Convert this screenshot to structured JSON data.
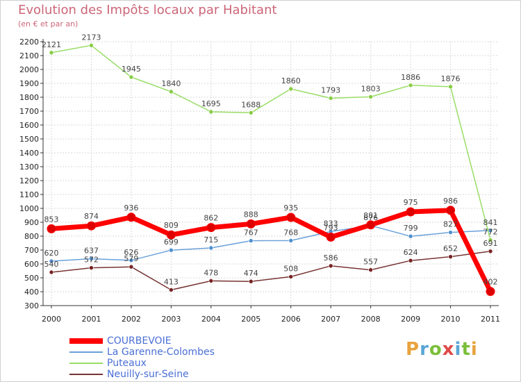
{
  "title": "Evolution des Impôts locaux par Habitant",
  "subtitle": "(en € et par an)",
  "brand": {
    "text": "Proxiti",
    "letter_colors": [
      "#e8a33d",
      "#5aa5d6",
      "#7bbf3a",
      "#e04848",
      "#5aa5d6",
      "#7bbf3a",
      "#e8a33d"
    ]
  },
  "chart_data": {
    "type": "line",
    "title": "Evolution des Impôts locaux par Habitant",
    "subtitle": "(en € et par an)",
    "xlabel": "",
    "ylabel": "",
    "x": [
      "2000",
      "2001",
      "2002",
      "2003",
      "2004",
      "2005",
      "2006",
      "2007",
      "2008",
      "2009",
      "2010",
      "2011"
    ],
    "ylim": [
      300,
      2200
    ],
    "y_ticks": [
      300,
      400,
      500,
      600,
      700,
      800,
      900,
      1000,
      1100,
      1200,
      1300,
      1400,
      1500,
      1600,
      1700,
      1800,
      1900,
      2000,
      2100,
      2200
    ],
    "grid": true,
    "legend_position": "bottom-left",
    "series": [
      {
        "name": "COURBEVOIE",
        "color": "#ff0000",
        "marker_color": "#dd0000",
        "emphasis": true,
        "values": [
          853,
          874,
          936,
          809,
          862,
          888,
          935,
          793,
          881,
          975,
          986,
          402
        ],
        "labels": [
          "853",
          "874",
          "936",
          "809",
          "862",
          "888",
          "935",
          "793",
          "881",
          "975",
          "986",
          "402"
        ]
      },
      {
        "name": "La Garenne-Colombes",
        "color": "#6aa0d8",
        "marker_color": "#4f8fd0",
        "emphasis": false,
        "values": [
          620,
          637,
          626,
          699,
          715,
          767,
          768,
          833,
          876,
          799,
          827,
          841
        ],
        "labels": [
          "620",
          "637",
          "626",
          "699",
          "715",
          "767",
          "768",
          "833",
          "876",
          "799",
          "827",
          "841"
        ]
      },
      {
        "name": "Puteaux",
        "color": "#99dd66",
        "marker_color": "#88cc44",
        "emphasis": false,
        "values": [
          2121,
          2173,
          1945,
          1840,
          1695,
          1688,
          1860,
          1793,
          1803,
          1886,
          1876,
          772
        ],
        "labels": [
          "2121",
          "2173",
          "1945",
          "1840",
          "1695",
          "1688",
          "1860",
          "1793",
          "1803",
          "1886",
          "1876",
          "772"
        ]
      },
      {
        "name": "Neuilly-sur-Seine",
        "color": "#773333",
        "marker_color": "#772222",
        "emphasis": false,
        "values": [
          540,
          572,
          579,
          413,
          478,
          474,
          508,
          586,
          557,
          624,
          652,
          691
        ],
        "labels": [
          "540",
          "572",
          "579",
          "413",
          "478",
          "474",
          "508",
          "586",
          "557",
          "624",
          "652",
          "691"
        ]
      }
    ]
  }
}
